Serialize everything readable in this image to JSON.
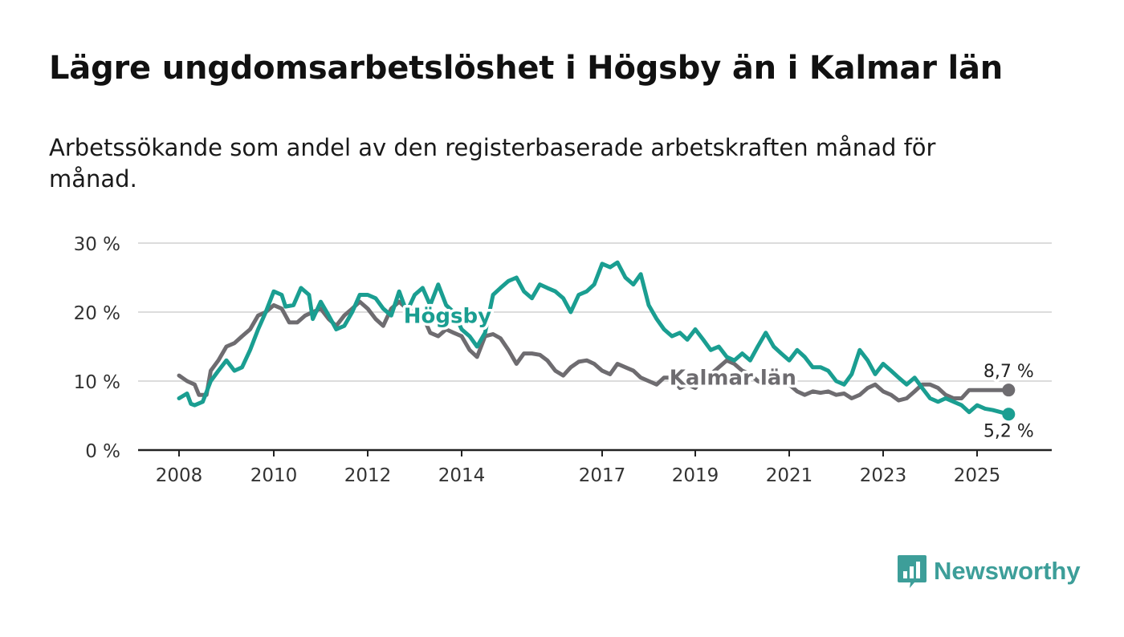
{
  "title": "Lägre ungdomsarbetslöshet i Högsby än i Kalmar län",
  "subtitle": "Arbetssökande som andel av den registerbaserade arbetskraften månad för månad.",
  "brand": {
    "name": "Newsworthy",
    "icon": "newsworthy-logo-icon",
    "color": "#3d9e99"
  },
  "chart_data": {
    "type": "line",
    "title": "Lägre ungdomsarbetslöshet i Högsby än i Kalmar län",
    "xlabel": "",
    "ylabel": "",
    "xlim": [
      2008,
      2026.33
    ],
    "ylim": [
      0,
      30
    ],
    "y_ticks": [
      0,
      10,
      20,
      30
    ],
    "y_tick_labels": [
      "0 %",
      "10 %",
      "20 %",
      "30 %"
    ],
    "x_ticks": [
      2008,
      2010,
      2012,
      2014,
      2017,
      2019,
      2021,
      2023,
      2025
    ],
    "x_tick_labels": [
      "2008",
      "2010",
      "2012",
      "2014",
      "2017",
      "2019",
      "2021",
      "2023",
      "2025"
    ],
    "grid": true,
    "legend": "inline labels on lines",
    "series": [
      {
        "name": "Högsby",
        "color": "#1a9e91",
        "x": [
          2008.0,
          2008.17,
          2008.25,
          2008.33,
          2008.5,
          2008.67,
          2008.83,
          2009.0,
          2009.17,
          2009.33,
          2009.5,
          2009.67,
          2009.83,
          2010.0,
          2010.17,
          2010.25,
          2010.42,
          2010.58,
          2010.75,
          2010.83,
          2011.0,
          2011.17,
          2011.33,
          2011.5,
          2011.67,
          2011.83,
          2012.0,
          2012.17,
          2012.33,
          2012.5,
          2012.67,
          2012.83,
          2013.0,
          2013.17,
          2013.33,
          2013.5,
          2013.67,
          2013.83,
          2014.0,
          2014.17,
          2014.33,
          2014.5,
          2014.67,
          2014.83,
          2015.0,
          2015.17,
          2015.33,
          2015.5,
          2015.67,
          2015.83,
          2016.0,
          2016.17,
          2016.33,
          2016.5,
          2016.67,
          2016.83,
          2017.0,
          2017.17,
          2017.33,
          2017.5,
          2017.67,
          2017.83,
          2018.0,
          2018.17,
          2018.33,
          2018.5,
          2018.67,
          2018.83,
          2019.0,
          2019.17,
          2019.33,
          2019.5,
          2019.67,
          2019.83,
          2020.0,
          2020.17,
          2020.33,
          2020.5,
          2020.67,
          2020.83,
          2021.0,
          2021.17,
          2021.33,
          2021.5,
          2021.67,
          2021.83,
          2022.0,
          2022.17,
          2022.33,
          2022.5,
          2022.67,
          2022.83,
          2023.0,
          2023.17,
          2023.33,
          2023.5,
          2023.67,
          2023.83,
          2024.0,
          2024.17,
          2024.33,
          2024.5,
          2024.67,
          2024.83,
          2025.0,
          2025.17,
          2025.33,
          2025.5,
          2025.67
        ],
        "values": [
          7.5,
          8.2,
          6.7,
          6.5,
          7.0,
          10.0,
          11.5,
          13.0,
          11.5,
          12.0,
          14.5,
          17.5,
          20.0,
          23.0,
          22.5,
          20.8,
          21.0,
          23.5,
          22.5,
          19.0,
          21.5,
          19.5,
          17.5,
          18.0,
          20.0,
          22.5,
          22.5,
          22.0,
          20.5,
          19.5,
          23.0,
          20.0,
          22.5,
          23.5,
          21.0,
          24.0,
          21.0,
          20.0,
          17.5,
          16.5,
          15.0,
          17.0,
          22.5,
          23.5,
          24.5,
          25.0,
          23.0,
          22.0,
          24.0,
          23.5,
          23.0,
          22.0,
          20.0,
          22.5,
          23.0,
          24.0,
          27.0,
          26.5,
          27.2,
          25.0,
          24.0,
          25.5,
          21.0,
          19.0,
          17.5,
          16.5,
          17.0,
          16.0,
          17.5,
          16.0,
          14.5,
          15.0,
          13.5,
          13.0,
          14.0,
          13.0,
          15.0,
          17.0,
          15.0,
          14.0,
          13.0,
          14.5,
          13.5,
          12.0,
          12.0,
          11.5,
          10.0,
          9.5,
          11.0,
          14.5,
          13.0,
          11.0,
          12.5,
          11.5,
          10.5,
          9.5,
          10.5,
          9.0,
          7.5,
          7.0,
          7.5,
          7.0,
          6.5,
          5.5,
          6.5,
          6.0,
          5.8,
          5.5,
          5.2
        ]
      },
      {
        "name": "Kalmar län",
        "color": "#6e6c70",
        "x": [
          2008.0,
          2008.17,
          2008.33,
          2008.42,
          2008.58,
          2008.67,
          2008.83,
          2009.0,
          2009.17,
          2009.33,
          2009.5,
          2009.67,
          2009.83,
          2010.0,
          2010.17,
          2010.33,
          2010.5,
          2010.67,
          2010.83,
          2011.0,
          2011.17,
          2011.33,
          2011.5,
          2011.67,
          2011.83,
          2012.0,
          2012.17,
          2012.33,
          2012.5,
          2012.67,
          2012.83,
          2013.0,
          2013.17,
          2013.33,
          2013.5,
          2013.67,
          2013.83,
          2014.0,
          2014.17,
          2014.33,
          2014.5,
          2014.67,
          2014.83,
          2015.0,
          2015.17,
          2015.33,
          2015.5,
          2015.67,
          2015.83,
          2016.0,
          2016.17,
          2016.33,
          2016.5,
          2016.67,
          2016.83,
          2017.0,
          2017.17,
          2017.33,
          2017.5,
          2017.67,
          2017.83,
          2018.0,
          2018.17,
          2018.33,
          2018.5,
          2018.67,
          2018.83,
          2019.0,
          2019.17,
          2019.33,
          2019.5,
          2019.67,
          2019.83,
          2020.0,
          2020.17,
          2020.33,
          2020.5,
          2020.67,
          2020.83,
          2021.0,
          2021.17,
          2021.33,
          2021.5,
          2021.67,
          2021.83,
          2022.0,
          2022.17,
          2022.33,
          2022.5,
          2022.67,
          2022.83,
          2023.0,
          2023.17,
          2023.33,
          2023.5,
          2023.67,
          2023.83,
          2024.0,
          2024.17,
          2024.33,
          2024.5,
          2024.67,
          2024.83,
          2025.0,
          2025.17,
          2025.33,
          2025.5,
          2025.67
        ],
        "values": [
          10.8,
          10.0,
          9.5,
          8.0,
          8.0,
          11.5,
          13.0,
          15.0,
          15.5,
          16.5,
          17.5,
          19.5,
          20.0,
          21.0,
          20.5,
          18.5,
          18.5,
          19.5,
          20.0,
          20.5,
          19.0,
          18.0,
          19.5,
          20.5,
          21.5,
          20.5,
          19.0,
          18.0,
          20.5,
          21.5,
          20.5,
          20.0,
          19.5,
          17.0,
          16.5,
          17.5,
          17.0,
          16.5,
          14.5,
          13.5,
          16.5,
          16.8,
          16.2,
          14.5,
          12.5,
          14.0,
          14.0,
          13.8,
          13.0,
          11.5,
          10.8,
          12.0,
          12.8,
          13.0,
          12.5,
          11.5,
          11.0,
          12.5,
          12.0,
          11.5,
          10.5,
          10.0,
          9.5,
          10.5,
          10.5,
          9.0,
          9.5,
          9.0,
          10.5,
          11.0,
          12.0,
          13.0,
          12.5,
          11.5,
          11.0,
          10.0,
          9.5,
          9.5,
          10.0,
          9.5,
          8.5,
          8.0,
          8.5,
          8.3,
          8.5,
          8.0,
          8.2,
          7.5,
          8.0,
          9.0,
          9.5,
          8.5,
          8.0,
          7.2,
          7.5,
          8.5,
          9.5,
          9.5,
          9.0,
          8.0,
          7.5,
          7.5,
          8.7,
          8.7,
          8.7,
          8.7,
          8.7,
          8.7
        ],
        "last_label": "8,7 %"
      }
    ],
    "annotations": [
      {
        "text": "Högsby",
        "series": "Högsby",
        "x": 2013.7,
        "y": 19.5
      },
      {
        "text": "Kalmar län",
        "series": "Kalmar län",
        "x": 2019.8,
        "y": 10.5
      },
      {
        "text": "8,7 %",
        "series": "Kalmar län",
        "x": 2025.67,
        "y": 8.7
      },
      {
        "text": "5,2 %",
        "series": "Högsby",
        "x": 2025.67,
        "y": 5.2
      }
    ]
  }
}
